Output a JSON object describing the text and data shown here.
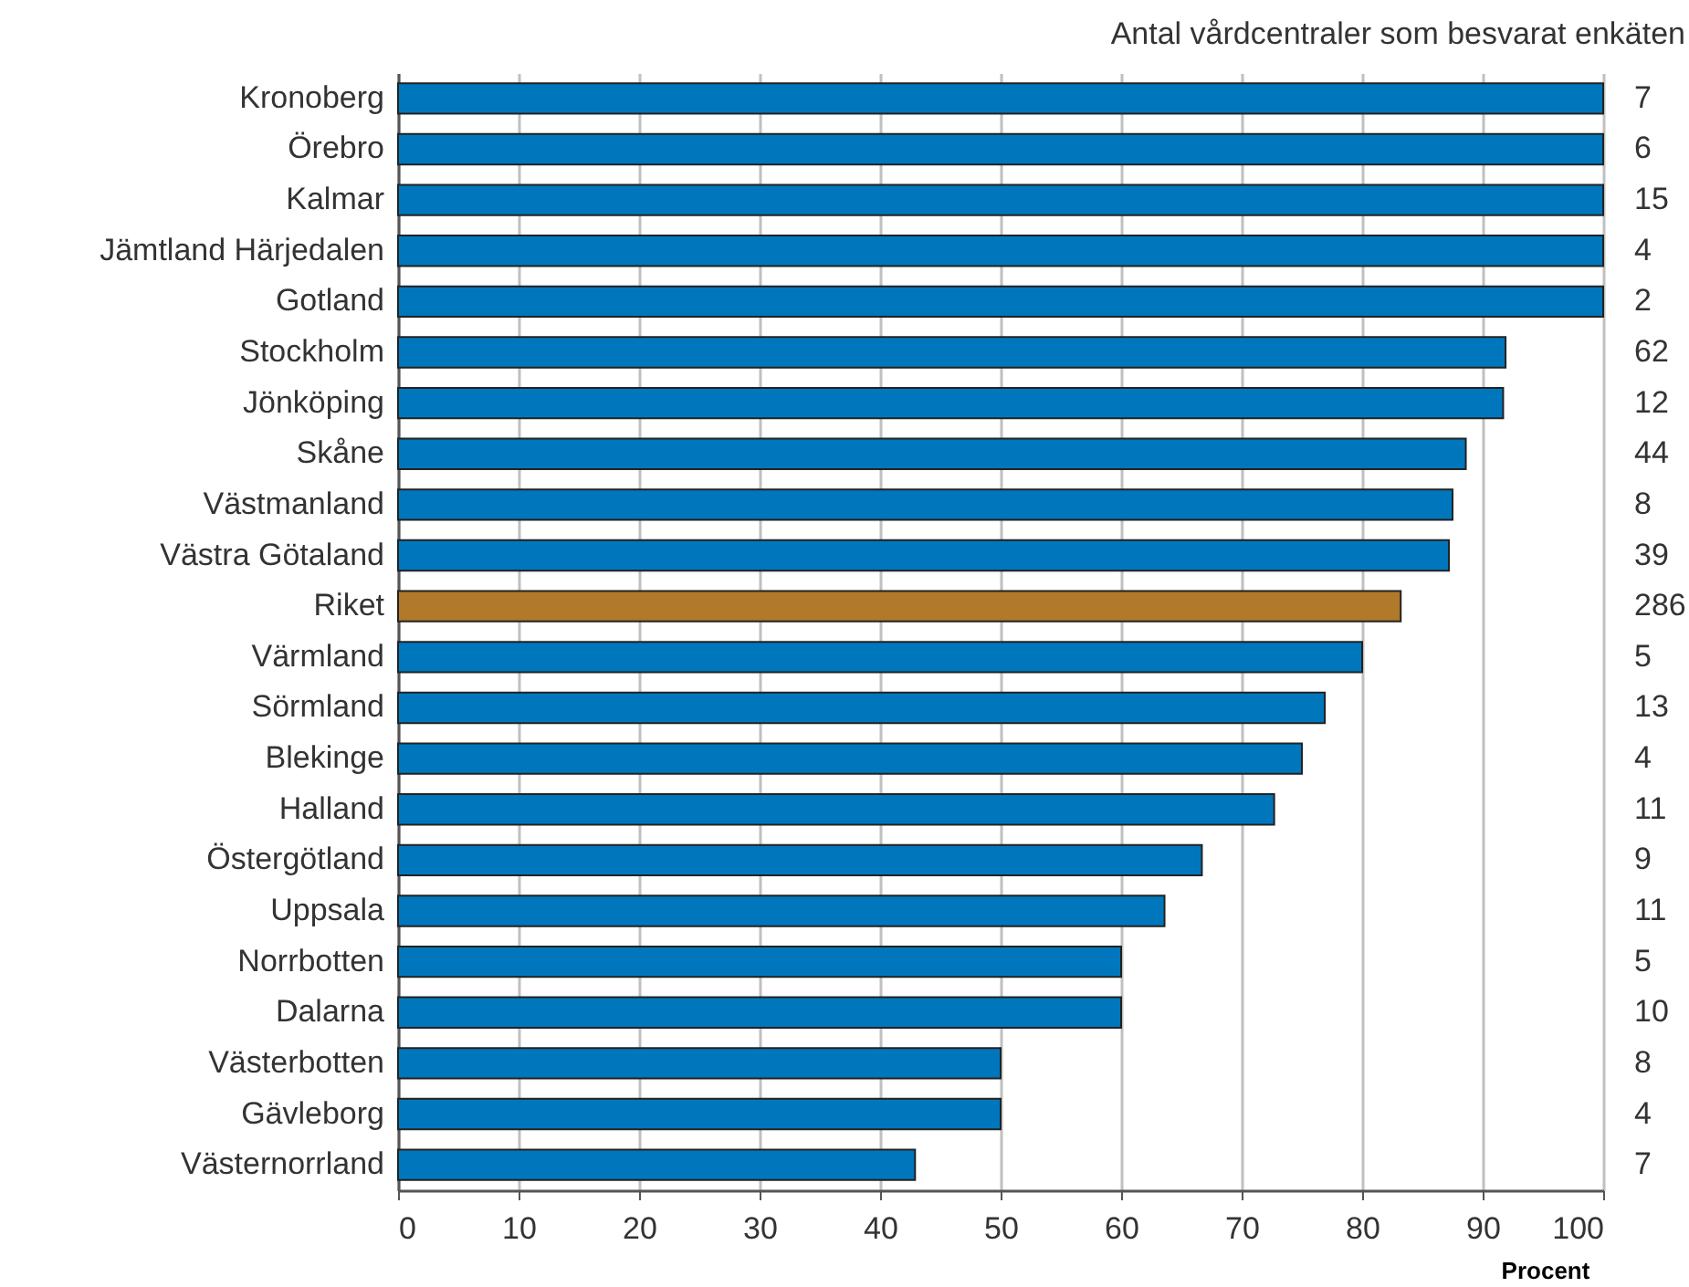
{
  "chart_data": {
    "type": "bar",
    "orientation": "horizontal",
    "xlabel": "Procent",
    "annotations": [
      "Antal vårdcentraler som besvarat enkäten",
      "7",
      "6",
      "15",
      "4",
      "2",
      "62",
      "12",
      "44",
      "8",
      "39",
      "286",
      "5",
      "13",
      "4",
      "11",
      "9",
      "11",
      "5",
      "10",
      "8",
      "4",
      "7"
    ],
    "categories": [
      "Kronoberg",
      "Örebro",
      "Kalmar",
      "Jämtland Härjedalen",
      "Gotland",
      "Stockholm",
      "Jönköping",
      "Skåne",
      "Västmanland",
      "Västra Götaland",
      "Riket",
      "Värmland",
      "Sörmland",
      "Blekinge",
      "Halland",
      "Östergötland",
      "Uppsala",
      "Norrbotten",
      "Dalarna",
      "Västerbotten",
      "Gävleborg",
      "Västernorrland"
    ],
    "values": [
      100,
      100,
      100,
      100,
      100,
      91.9,
      91.7,
      88.6,
      87.5,
      87.2,
      83.2,
      80.0,
      76.9,
      75.0,
      72.7,
      66.7,
      63.6,
      60,
      60,
      50,
      50,
      42.9
    ],
    "colors": [
      "#0077bd",
      "#0077bd",
      "#0077bd",
      "#0077bd",
      "#0077bd",
      "#0077bd",
      "#0077bd",
      "#0077bd",
      "#0077bd",
      "#0077bd",
      "#b07a2a",
      "#0077bd",
      "#0077bd",
      "#0077bd",
      "#0077bd",
      "#0077bd",
      "#0077bd",
      "#0077bd",
      "#0077bd",
      "#0077bd",
      "#0077bd",
      "#0077bd"
    ],
    "xlim": [
      0,
      100
    ],
    "xticks": [
      0,
      10,
      20,
      30,
      40,
      50,
      60,
      70,
      80,
      90,
      100
    ],
    "grid": "x",
    "legend": false
  }
}
